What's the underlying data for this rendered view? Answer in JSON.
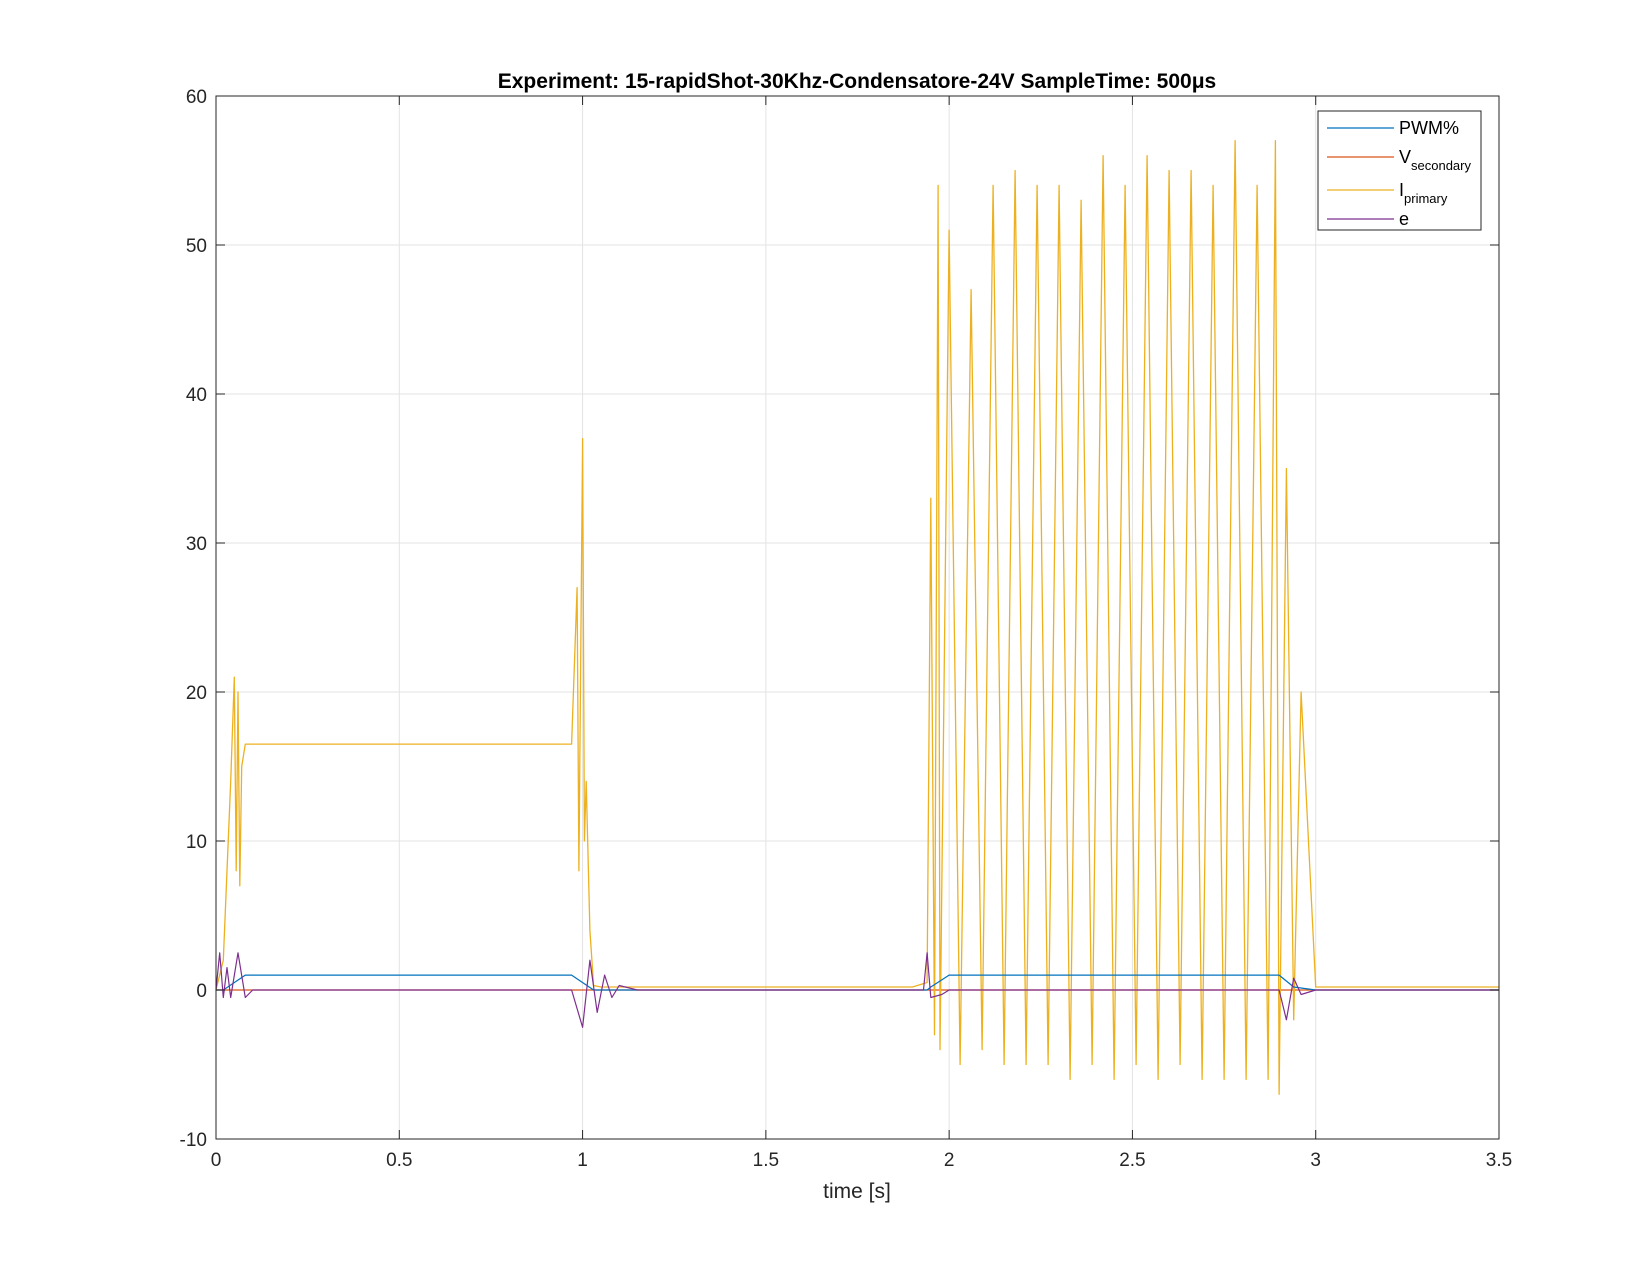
{
  "chart_data": {
    "type": "line",
    "title": "Experiment: 15-rapidShot-30Khz-Condensatore-24V   SampleTime: 500μs",
    "xlabel": "time [s]",
    "ylabel": "",
    "xlim": [
      0,
      3.5
    ],
    "ylim": [
      -10,
      60
    ],
    "xticks": [
      0,
      0.5,
      1,
      1.5,
      2,
      2.5,
      3,
      3.5
    ],
    "xtick_labels": [
      "0",
      "0.5",
      "1",
      "1.5",
      "2",
      "2.5",
      "3",
      "3.5"
    ],
    "yticks": [
      -10,
      0,
      10,
      20,
      30,
      40,
      50,
      60
    ],
    "ytick_labels": [
      "-10",
      "0",
      "10",
      "20",
      "30",
      "40",
      "50",
      "60"
    ],
    "grid": true,
    "legend_position": "top-right",
    "series": [
      {
        "name": "PWM%",
        "label_main": "PWM%",
        "label_sub": "",
        "color": "#0072BD",
        "x": [
          0,
          0.02,
          0.08,
          0.97,
          1.03,
          1.2,
          1.94,
          1.95,
          2.0,
          2.9,
          2.94,
          3.0,
          3.5
        ],
        "y": [
          0,
          0,
          1.0,
          1.0,
          0,
          0,
          0,
          0.2,
          1.0,
          1.0,
          0.2,
          0,
          0
        ]
      },
      {
        "name": "Vsecondary",
        "label_main": "V",
        "label_sub": "secondary",
        "color": "#D95319",
        "x": [
          0,
          0.5,
          1.0,
          1.5,
          2.0,
          2.5,
          3.0,
          3.5
        ],
        "y": [
          0,
          0,
          0,
          0,
          0,
          0,
          0,
          0
        ]
      },
      {
        "name": "Iprimary",
        "label_main": "I",
        "label_sub": "primary",
        "color": "#EDB120",
        "x": [
          0,
          0.02,
          0.03,
          0.04,
          0.05,
          0.055,
          0.06,
          0.065,
          0.07,
          0.08,
          0.1,
          0.2,
          0.3,
          0.4,
          0.5,
          0.6,
          0.7,
          0.8,
          0.9,
          0.97,
          0.985,
          0.99,
          1.0,
          1.005,
          1.01,
          1.02,
          1.03,
          1.05,
          1.1,
          1.5,
          1.9,
          1.94,
          1.95,
          1.96,
          1.97,
          1.975,
          2.0,
          2.03,
          2.06,
          2.09,
          2.12,
          2.15,
          2.18,
          2.21,
          2.24,
          2.27,
          2.3,
          2.33,
          2.36,
          2.39,
          2.42,
          2.45,
          2.48,
          2.51,
          2.54,
          2.57,
          2.6,
          2.63,
          2.66,
          2.69,
          2.72,
          2.75,
          2.78,
          2.81,
          2.84,
          2.87,
          2.89,
          2.9,
          2.92,
          2.94,
          2.96,
          3.0,
          3.5
        ],
        "y": [
          0,
          2,
          8,
          14,
          21,
          8,
          20,
          7,
          15,
          16.5,
          16.5,
          16.5,
          16.5,
          16.5,
          16.5,
          16.5,
          16.5,
          16.5,
          16.5,
          16.5,
          27,
          8,
          37,
          10,
          14,
          4,
          0.3,
          0.2,
          0.2,
          0.2,
          0.2,
          0.5,
          33,
          -3,
          54,
          -4,
          51,
          -5,
          47,
          -4,
          54,
          -5,
          55,
          -5,
          54,
          -5,
          54,
          -6,
          53,
          -5,
          56,
          -6,
          54,
          -5,
          56,
          -6,
          55,
          -5,
          55,
          -6,
          54,
          -6,
          57,
          -6,
          54,
          -6,
          57,
          -7,
          35,
          -2,
          20,
          0.2,
          0.2
        ]
      },
      {
        "name": "e",
        "label_main": "e",
        "label_sub": "",
        "color": "#7E2F8E",
        "x": [
          0,
          0.01,
          0.02,
          0.03,
          0.04,
          0.06,
          0.08,
          0.1,
          0.5,
          0.97,
          1.0,
          1.02,
          1.04,
          1.06,
          1.08,
          1.1,
          1.15,
          1.2,
          1.5,
          1.93,
          1.94,
          1.95,
          1.98,
          2.0,
          2.5,
          2.9,
          2.92,
          2.94,
          2.96,
          3.0,
          3.5
        ],
        "y": [
          0,
          2.5,
          -0.5,
          1.5,
          -0.5,
          2.5,
          -0.5,
          0,
          0,
          0,
          -2.5,
          2.0,
          -1.5,
          1.0,
          -0.5,
          0.3,
          0,
          0,
          0,
          0,
          2.5,
          -0.5,
          -0.3,
          0,
          0,
          0,
          -2.0,
          0.8,
          -0.3,
          0,
          0
        ]
      }
    ]
  }
}
